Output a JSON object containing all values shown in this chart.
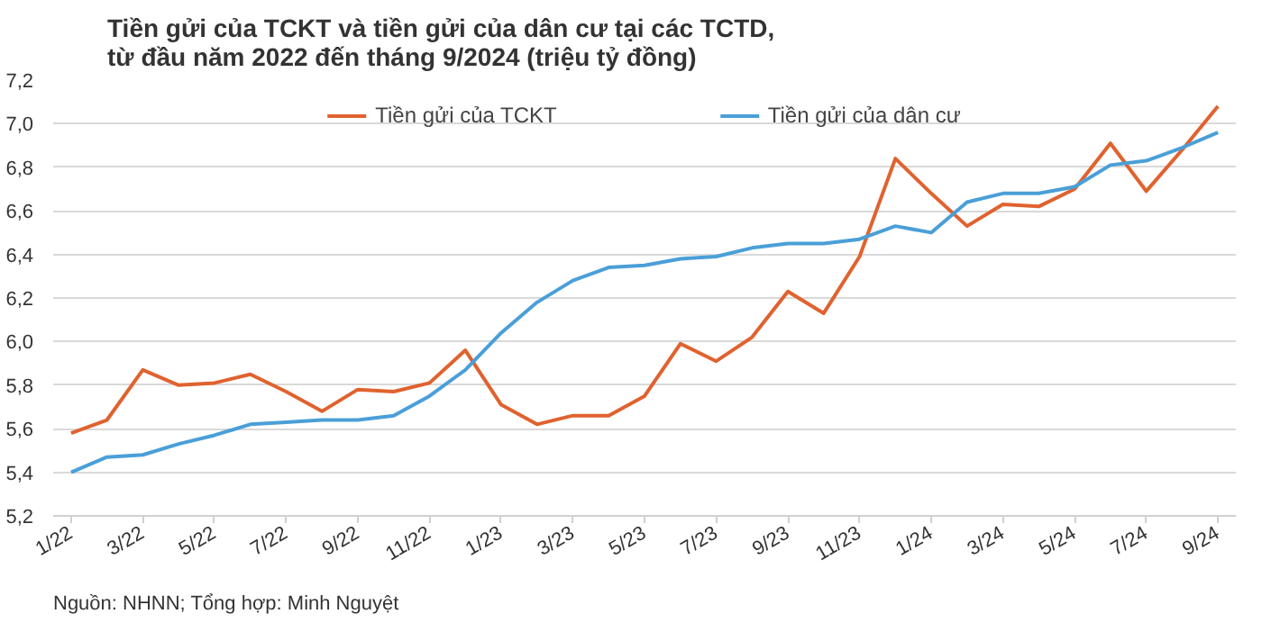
{
  "chart_data": {
    "type": "line",
    "title": "Tiền gửi của TCKT và tiền gửi của dân cư tại các TCTD,\ntừ đầu năm 2022 đến tháng 9/2024 (triệu tỷ đồng)",
    "categories": [
      "1/22",
      null,
      "3/22",
      null,
      "5/22",
      null,
      "7/22",
      null,
      "9/22",
      null,
      "11/22",
      null,
      "1/23",
      null,
      "3/23",
      null,
      "5/23",
      null,
      "7/23",
      null,
      "9/23",
      null,
      "11/23",
      null,
      "1/24",
      null,
      "3/24",
      null,
      "5/24",
      null,
      "7/24",
      null,
      "9/24"
    ],
    "series": [
      {
        "name": "Tiền gửi của TCKT",
        "color": "#e0622f",
        "values": [
          5.58,
          5.64,
          5.87,
          5.8,
          5.81,
          5.85,
          5.77,
          5.68,
          5.78,
          5.77,
          5.81,
          5.96,
          5.71,
          5.62,
          5.66,
          5.66,
          5.75,
          5.99,
          5.91,
          6.02,
          6.23,
          6.13,
          6.39,
          6.84,
          6.68,
          6.53,
          6.63,
          6.62,
          6.7,
          6.91,
          6.69,
          6.88,
          7.08
        ]
      },
      {
        "name": "Tiền gửi của dân cư",
        "color": "#4a9fd8",
        "values": [
          5.4,
          5.47,
          5.48,
          5.53,
          5.57,
          5.62,
          5.63,
          5.64,
          5.64,
          5.66,
          5.75,
          5.87,
          6.04,
          6.18,
          6.28,
          6.34,
          6.35,
          6.38,
          6.39,
          6.43,
          6.45,
          6.45,
          6.47,
          6.53,
          6.5,
          6.64,
          6.68,
          6.68,
          6.71,
          6.81,
          6.83,
          6.89,
          6.96
        ]
      }
    ],
    "ylim": [
      5.2,
      7.2
    ],
    "yticks": [
      {
        "value": 5.2,
        "label": "5,2"
      },
      {
        "value": 5.4,
        "label": "5,4"
      },
      {
        "value": 5.6,
        "label": "5,6"
      },
      {
        "value": 5.8,
        "label": "5,8"
      },
      {
        "value": 6.0,
        "label": "6,0"
      },
      {
        "value": 6.2,
        "label": "6,2"
      },
      {
        "value": 6.4,
        "label": "6,4"
      },
      {
        "value": 6.6,
        "label": "6,6"
      },
      {
        "value": 6.8,
        "label": "6,8"
      },
      {
        "value": 7.0,
        "label": "7,0"
      },
      {
        "value": 7.2,
        "label": "7,2"
      }
    ],
    "grid": "y",
    "legend": "top",
    "marker": "none",
    "line_style": "solid",
    "annotations": [
      "Nguồn: NHNN; Tổng hợp: Minh Nguyệt"
    ]
  }
}
